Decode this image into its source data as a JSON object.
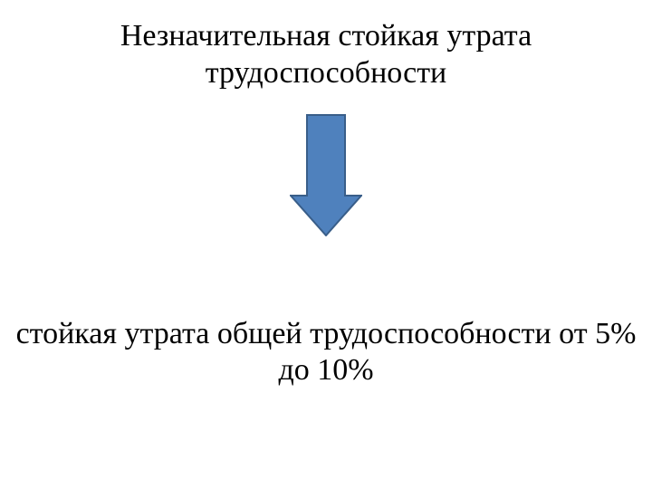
{
  "slide": {
    "title": "Незначительная стойкая утрата трудоспособности",
    "body": "стойкая утрата общей трудоспособности от 5% до 10%",
    "title_fontsize": 34,
    "body_fontsize": 34,
    "title_color": "#000000",
    "body_color": "#000000",
    "background_color": "#ffffff",
    "font_family": "Times New Roman"
  },
  "arrow": {
    "type": "down-arrow",
    "fill_color": "#4f81bd",
    "stroke_color": "#395e89",
    "stroke_width": 2,
    "total_width": 80,
    "total_height": 135,
    "shaft_width": 42,
    "head_height": 45
  }
}
